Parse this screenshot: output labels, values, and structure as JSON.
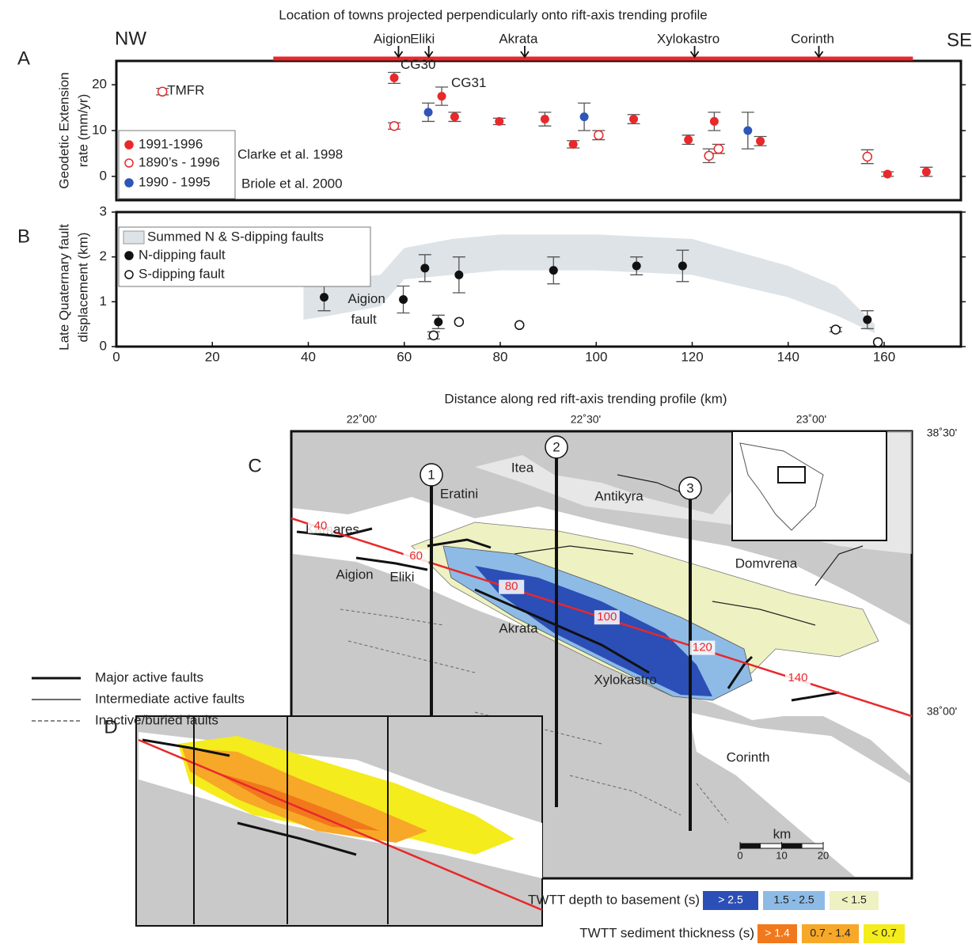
{
  "chart_data": [
    {
      "type": "scatter",
      "panel": "A",
      "title": "Location of towns projected perpendicularly onto rift-axis trending profile",
      "direction_labels": [
        "NW",
        "SE"
      ],
      "towns": {
        "names": [
          "Aigion",
          "Eliki",
          "Akrata",
          "Xylokastro",
          "Corinth"
        ],
        "x": [
          58.8,
          65.1,
          85.1,
          120.5,
          146.4
        ]
      },
      "profile_x": [
        32.7,
        166
      ],
      "profile_color": "#e8282b",
      "ylabel": [
        "Geodetic Extension",
        "rate (mm/yr)"
      ],
      "xlim": [
        0,
        176
      ],
      "ylim": [
        -5.2,
        25.2
      ],
      "yticks": [
        0,
        10,
        20
      ],
      "series": [
        {
          "name": "1991-1996",
          "color": "#e8282b",
          "marker": "filled",
          "x": [
            57.9,
            67.8,
            70.5,
            79.8,
            89.3,
            95.2,
            107.8,
            119.2,
            124.6,
            134.2,
            160.7,
            168.8
          ],
          "values": [
            21.5,
            17.5,
            13,
            12,
            12.5,
            7,
            12.5,
            8,
            12,
            7.7,
            0.5,
            1
          ],
          "errors": [
            1.2,
            2,
            1,
            0.7,
            1.5,
            0.8,
            1,
            1,
            2,
            1,
            0.5,
            1
          ]
        },
        {
          "name": "1890’s - 1996",
          "color": "#e8282b",
          "marker": "open",
          "x": [
            9.6,
            57.9,
            100.5,
            123.5,
            125.5,
            156.5
          ],
          "values": [
            18.5,
            11,
            9,
            4.5,
            6,
            4.3
          ],
          "errors": [
            0.7,
            0.7,
            1,
            1.5,
            1,
            1.5
          ]
        },
        {
          "name": "1990 - 1995",
          "color": "#2e55b8",
          "marker": "filled",
          "x": [
            65,
            97.5,
            131.6
          ],
          "values": [
            14,
            13,
            10
          ],
          "errors": [
            2,
            3,
            4
          ]
        }
      ],
      "legend_refs": [
        "Clarke et al. 1998",
        "Briole et al. 2000"
      ],
      "annotations": [
        {
          "text": "TMFR",
          "series": 1,
          "index": 0
        },
        {
          "text": "CG30",
          "series": 0,
          "index": 0
        },
        {
          "text": "CG31",
          "series": 0,
          "index": 1
        }
      ]
    },
    {
      "type": "scatter",
      "panel": "B",
      "ylabel": [
        "Late Quaternary fault",
        "displacement (km)"
      ],
      "xlabel": "Distance along red rift-axis trending profile (km)",
      "xlim": [
        0,
        176
      ],
      "xticks": [
        0,
        20,
        40,
        60,
        80,
        100,
        120,
        140,
        160
      ],
      "ylim": [
        0,
        3
      ],
      "yticks": [
        0,
        1,
        2,
        3
      ],
      "series": [
        {
          "name": "Summed N & S-dipping faults",
          "color": "#dde3e7",
          "marker": "band",
          "x": [
            39,
            45,
            55,
            60,
            70,
            80,
            100,
            120,
            140,
            150,
            158
          ],
          "upper": [
            1.45,
            1.5,
            1.6,
            2.2,
            2.4,
            2.5,
            2.5,
            2.4,
            1.8,
            1.35,
            0.5
          ],
          "lower": [
            0.6,
            0.7,
            0.9,
            1.5,
            1.6,
            1.7,
            1.7,
            1.6,
            1.1,
            0.7,
            0.3
          ]
        },
        {
          "name": "N-dipping fault",
          "color": "#111111",
          "marker": "filled",
          "x": [
            43.3,
            59.8,
            64.3,
            67.1,
            71.4,
            91.1,
            108.4,
            118,
            156.5
          ],
          "values": [
            1.1,
            1.05,
            1.75,
            0.55,
            1.6,
            1.7,
            1.8,
            1.8,
            0.6
          ],
          "errors": [
            0.3,
            0.3,
            0.3,
            0.15,
            0.4,
            0.3,
            0.2,
            0.35,
            0.2
          ]
        },
        {
          "name": "S-dipping fault",
          "color": "#111111",
          "marker": "open",
          "x": [
            66.1,
            71.4,
            84,
            149.9,
            158.7
          ],
          "values": [
            0.25,
            0.55,
            0.48,
            0.38,
            0.1
          ],
          "errors": [
            0.08,
            null,
            null,
            0.05,
            null
          ]
        }
      ],
      "annotations": [
        {
          "lines": [
            "Aigion",
            "fault"
          ],
          "series": 1,
          "index": 1
        }
      ]
    }
  ],
  "map": {
    "panel_c": "C",
    "panel_d": "D",
    "lon_labels": [
      "22˚00'",
      "22˚30'",
      "23˚00'"
    ],
    "lat_labels": [
      "38˚30'",
      "38˚00'"
    ],
    "places": [
      "Itea",
      "Eratini",
      "Antikyra",
      "Kamares",
      "Domvrena",
      "Aigion",
      "Eliki",
      "Akrata",
      "Xylokastro",
      "Corinth"
    ],
    "distance_marks": [
      40,
      60,
      80,
      100,
      120,
      140
    ],
    "profiles": [
      "1",
      "2",
      "3"
    ],
    "scale": {
      "unit": "km",
      "ticks": [
        0,
        10,
        20
      ]
    },
    "fault_legend": [
      "Major active faults",
      "Intermediate active faults",
      "Inactive/buried faults"
    ],
    "depth_legend": {
      "title": "TWTT depth to basement (s)",
      "classes": [
        {
          "label": "> 2.5",
          "color": "#2b4fb6"
        },
        {
          "label": "1.5 - 2.5",
          "color": "#8dbbe6"
        },
        {
          "label": "< 1.5",
          "color": "#eef1c2"
        }
      ]
    },
    "thickness_legend": {
      "title": "TWTT sediment thickness (s)",
      "classes": [
        {
          "label": "> 1.4",
          "color": "#f2781c"
        },
        {
          "label": "0.7 - 1.4",
          "color": "#f7a828"
        },
        {
          "label": "< 0.7",
          "color": "#f4ec1c"
        }
      ]
    }
  }
}
